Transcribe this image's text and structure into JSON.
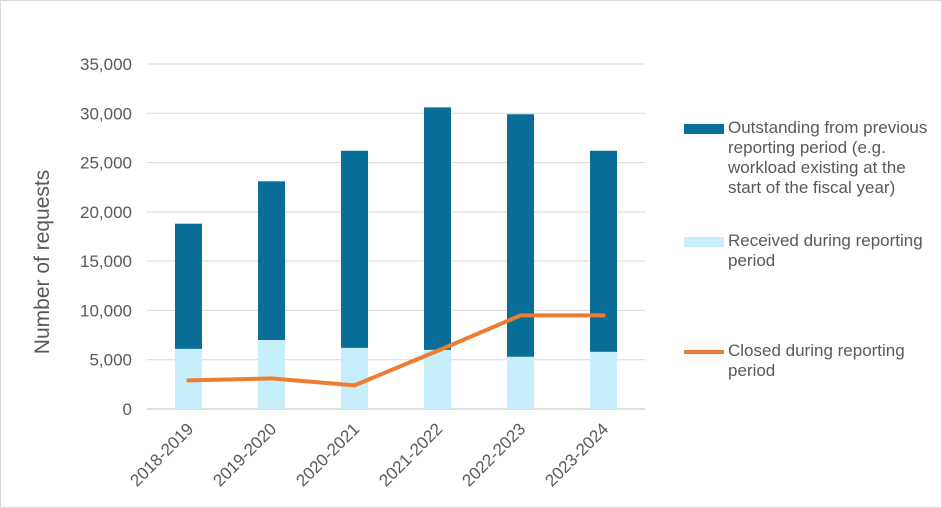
{
  "chart_data": {
    "type": "bar",
    "stacked": true,
    "categories": [
      "2018-2019",
      "2019-2020",
      "2020-2021",
      "2021-2022",
      "2022-2023",
      "2023-2024"
    ],
    "series": [
      {
        "name": "Received during reporting period",
        "kind": "bar",
        "color": "#c7eefb",
        "values": [
          6100,
          7000,
          6200,
          6000,
          5300,
          5800
        ]
      },
      {
        "name": "Outstanding from previous reporting period (e.g. workload existing at the start of the fiscal year)",
        "kind": "bar",
        "color": "#0a6f98",
        "values": [
          12700,
          16100,
          20000,
          24600,
          24600,
          20400
        ]
      },
      {
        "name": "Closed during reporting period",
        "kind": "line",
        "color": "#ed7d31",
        "values": [
          2900,
          3100,
          2400,
          5900,
          9500,
          9500
        ]
      }
    ],
    "ylabel": "Number of requests",
    "yticks": [
      "0",
      "5,000",
      "10,000",
      "15,000",
      "20,000",
      "25,000",
      "30,000",
      "35,000"
    ],
    "ylim": [
      0,
      35000
    ],
    "grid": true,
    "legend_position": "right"
  }
}
